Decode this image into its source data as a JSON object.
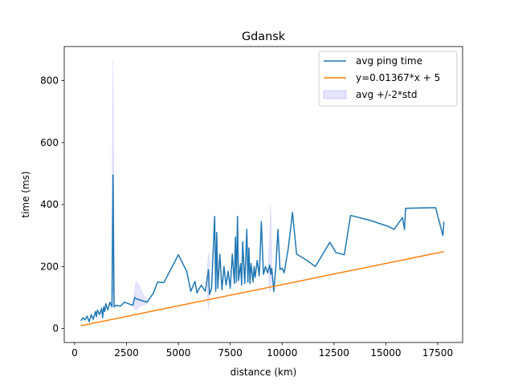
{
  "chart_data": {
    "type": "line",
    "title": "Gdansk",
    "xlabel": "distance (km)",
    "ylabel": "time (ms)",
    "xlim": [
      -500,
      18700
    ],
    "ylim": [
      -45,
      910
    ],
    "xticks": [
      0,
      2500,
      5000,
      7500,
      10000,
      12500,
      15000,
      17500
    ],
    "xtick_labels": [
      "0",
      "2500",
      "5000",
      "7500",
      "10000",
      "12500",
      "15000",
      "17500"
    ],
    "yticks": [
      0,
      200,
      400,
      600,
      800
    ],
    "ytick_labels": [
      "0",
      "200",
      "400",
      "600",
      "800"
    ],
    "grid": false,
    "legend_position": "top-right",
    "series": [
      {
        "name": "avg ping time",
        "color": "#1f77b4",
        "kind": "line",
        "points": [
          [
            300,
            25
          ],
          [
            400,
            35
          ],
          [
            500,
            28
          ],
          [
            600,
            40
          ],
          [
            700,
            22
          ],
          [
            800,
            45
          ],
          [
            900,
            30
          ],
          [
            1000,
            55
          ],
          [
            1050,
            38
          ],
          [
            1100,
            60
          ],
          [
            1200,
            45
          ],
          [
            1300,
            65
          ],
          [
            1350,
            35
          ],
          [
            1400,
            70
          ],
          [
            1450,
            55
          ],
          [
            1500,
            80
          ],
          [
            1600,
            60
          ],
          [
            1700,
            85
          ],
          [
            1800,
            70
          ],
          [
            1850,
            495
          ],
          [
            1900,
            70
          ],
          [
            2000,
            75
          ],
          [
            2200,
            72
          ],
          [
            2400,
            85
          ],
          [
            2600,
            80
          ],
          [
            2800,
            75
          ],
          [
            2900,
            100
          ],
          [
            3000,
            95
          ],
          [
            3500,
            85
          ],
          [
            3800,
            115
          ],
          [
            4000,
            150
          ],
          [
            4300,
            148
          ],
          [
            5000,
            238
          ],
          [
            5400,
            185
          ],
          [
            5600,
            120
          ],
          [
            5800,
            152
          ],
          [
            5900,
            115
          ],
          [
            6100,
            140
          ],
          [
            6300,
            120
          ],
          [
            6450,
            190
          ],
          [
            6500,
            110
          ],
          [
            6600,
            130
          ],
          [
            6750,
            362
          ],
          [
            6800,
            120
          ],
          [
            6850,
            310
          ],
          [
            6900,
            130
          ],
          [
            7000,
            240
          ],
          [
            7100,
            125
          ],
          [
            7200,
            200
          ],
          [
            7300,
            140
          ],
          [
            7400,
            185
          ],
          [
            7500,
            130
          ],
          [
            7600,
            240
          ],
          [
            7700,
            145
          ],
          [
            7750,
            295
          ],
          [
            7800,
            150
          ],
          [
            7850,
            362
          ],
          [
            7900,
            155
          ],
          [
            8000,
            210
          ],
          [
            8050,
            140
          ],
          [
            8100,
            280
          ],
          [
            8200,
            145
          ],
          [
            8300,
            320
          ],
          [
            8350,
            150
          ],
          [
            8400,
            260
          ],
          [
            8450,
            145
          ],
          [
            8500,
            210
          ],
          [
            8600,
            150
          ],
          [
            8650,
            200
          ],
          [
            8700,
            165
          ],
          [
            8800,
            220
          ],
          [
            8900,
            170
          ],
          [
            9000,
            345
          ],
          [
            9100,
            175
          ],
          [
            9200,
            200
          ],
          [
            9300,
            180
          ],
          [
            9400,
            205
          ],
          [
            9450,
            175
          ],
          [
            9500,
            195
          ],
          [
            9600,
            120
          ],
          [
            9700,
            200
          ],
          [
            9800,
            320
          ],
          [
            9900,
            190
          ],
          [
            10000,
            195
          ],
          [
            10100,
            180
          ],
          [
            10300,
            260
          ],
          [
            10500,
            375
          ],
          [
            10700,
            240
          ],
          [
            11200,
            220
          ],
          [
            11600,
            200
          ],
          [
            12300,
            278
          ],
          [
            12600,
            245
          ],
          [
            13000,
            238
          ],
          [
            13300,
            365
          ],
          [
            14200,
            350
          ],
          [
            15100,
            330
          ],
          [
            15400,
            320
          ],
          [
            15800,
            358
          ],
          [
            15900,
            320
          ],
          [
            15950,
            388
          ],
          [
            17400,
            390
          ],
          [
            17750,
            300
          ],
          [
            17800,
            345
          ]
        ]
      },
      {
        "name": "y=0.01367*x + 5",
        "color": "#ff7f0e",
        "kind": "line",
        "points": [
          [
            300,
            9.1
          ],
          [
            17800,
            248.3
          ]
        ]
      },
      {
        "name": "avg +/-2*std",
        "color": "#0000ff",
        "opacity": 0.1,
        "kind": "band",
        "bands": [
          {
            "x": [
              1780,
              1820,
              1850,
              1880,
              1920
            ],
            "lower": [
              60,
              100,
              130,
              90,
              60
            ],
            "upper": [
              80,
              600,
              865,
              580,
              80
            ]
          },
          {
            "x": [
              2850,
              2950,
              3100,
              3300,
              3500
            ],
            "lower": [
              70,
              60,
              70,
              75,
              80
            ],
            "upper": [
              90,
              150,
              140,
              110,
              95
            ]
          },
          {
            "x": [
              6400,
              6450,
              6500
            ],
            "lower": [
              100,
              60,
              100
            ],
            "upper": [
              200,
              245,
              200
            ]
          },
          {
            "x": [
              9350,
              9400,
              9450,
              9500
            ],
            "lower": [
              160,
              120,
              130,
              160
            ],
            "upper": [
              240,
              300,
              400,
              240
            ]
          }
        ]
      }
    ]
  }
}
